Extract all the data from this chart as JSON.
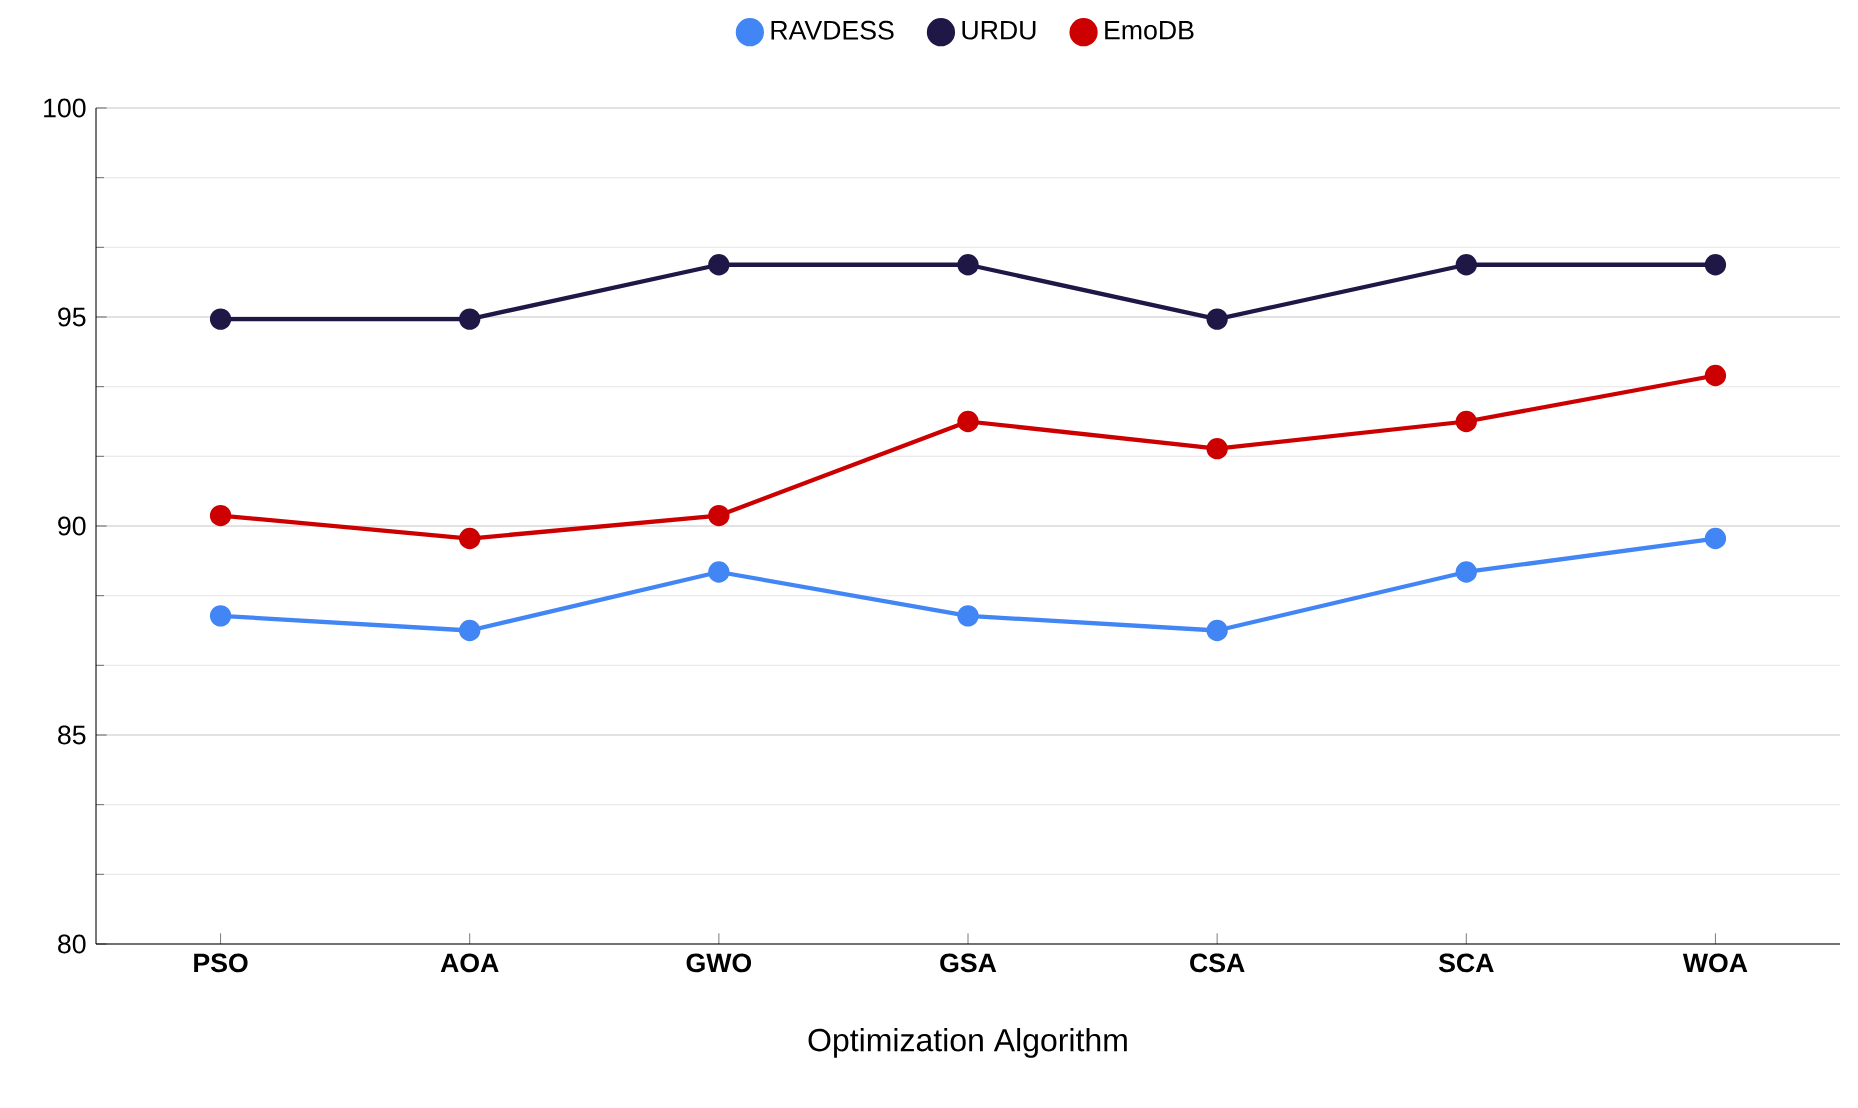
{
  "chart_data": {
    "type": "line",
    "xlabel": "Optimization Algorithm",
    "categories": [
      "PSO",
      "AOA",
      "GWO",
      "GSA",
      "CSA",
      "SCA",
      "WOA"
    ],
    "series": [
      {
        "name": "RAVDESS",
        "color": "#4285f4",
        "values": [
          87.85,
          87.5,
          88.9,
          87.85,
          87.5,
          88.9,
          89.7
        ]
      },
      {
        "name": "URDU",
        "color": "#1f1746",
        "values": [
          94.95,
          94.95,
          96.25,
          96.25,
          94.95,
          96.25,
          96.25
        ]
      },
      {
        "name": "EmoDB",
        "color": "#cc0000",
        "values": [
          90.25,
          89.7,
          90.25,
          92.5,
          91.85,
          92.5,
          93.6
        ]
      }
    ],
    "ylim": [
      80,
      100
    ],
    "yticks": [
      80,
      85,
      90,
      95,
      100
    ],
    "grid": "y",
    "legend": "top",
    "marker": "circle",
    "line_style": "solid"
  }
}
